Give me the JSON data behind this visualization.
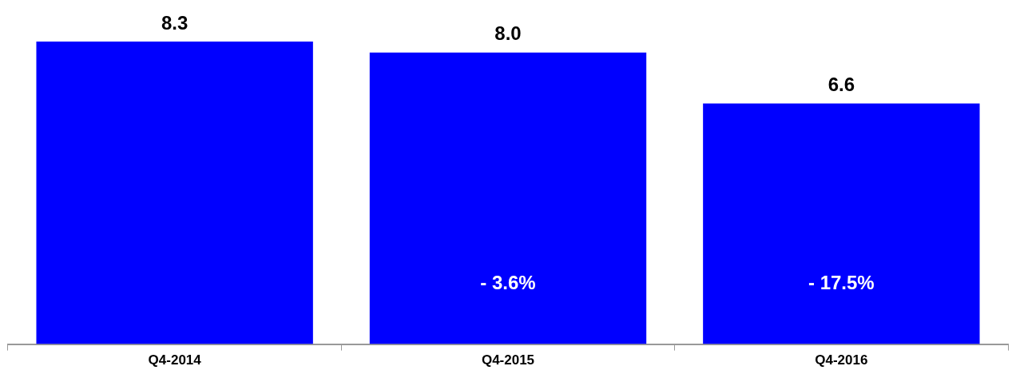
{
  "chart_data": {
    "type": "bar",
    "categories": [
      "Q4-2014",
      "Q4-2015",
      "Q4-2016"
    ],
    "values": [
      8.3,
      8.0,
      6.6
    ],
    "value_labels": [
      "8.3",
      "8.0",
      "6.6"
    ],
    "color": "#0000ff",
    "grid": false,
    "legend": false,
    "tick_labels": "x",
    "annotations": [
      "- 3.6%",
      "- 17.5%"
    ]
  }
}
